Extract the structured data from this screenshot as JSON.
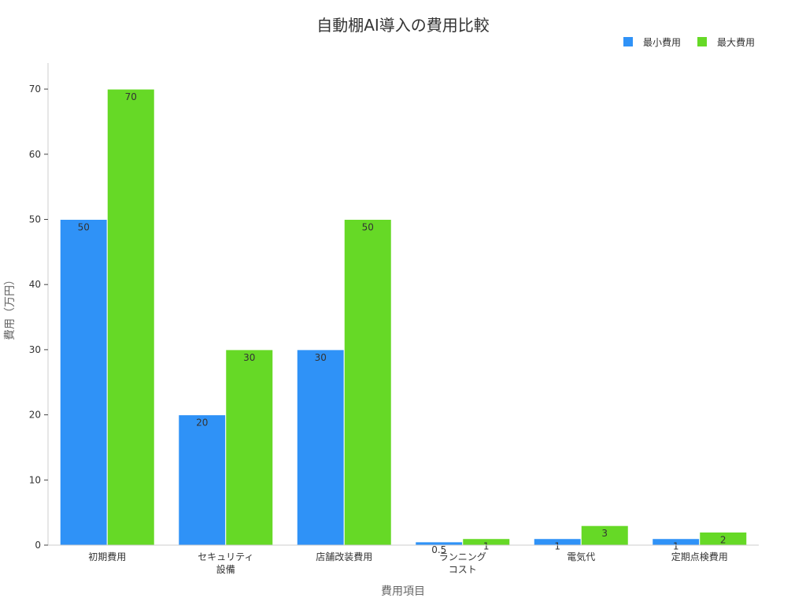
{
  "chart_data": {
    "type": "bar",
    "title": "自動棚AI導入の費用比較",
    "xlabel": "費用項目",
    "ylabel": "費用（万円）",
    "ylim": [
      0,
      74
    ],
    "yticks": [
      0,
      10,
      20,
      30,
      40,
      50,
      60,
      70
    ],
    "grid": false,
    "legend_position": "top-right",
    "categories": [
      [
        "初期費用"
      ],
      [
        "セキュリティ",
        "設備"
      ],
      [
        "店舗改装費用"
      ],
      [
        "ランニング",
        "コスト"
      ],
      [
        "電気代"
      ],
      [
        "定期点検費用"
      ]
    ],
    "series": [
      {
        "name": "最小費用",
        "color": "#2f92f7",
        "values": [
          50,
          20,
          30,
          0.5,
          1,
          1
        ],
        "labels": [
          "50",
          "20",
          "30",
          "0.5",
          "1",
          "1"
        ]
      },
      {
        "name": "最大費用",
        "color": "#66d926",
        "values": [
          70,
          30,
          50,
          1,
          3,
          2
        ],
        "labels": [
          "70",
          "30",
          "50",
          "1",
          "3",
          "2"
        ]
      }
    ]
  }
}
